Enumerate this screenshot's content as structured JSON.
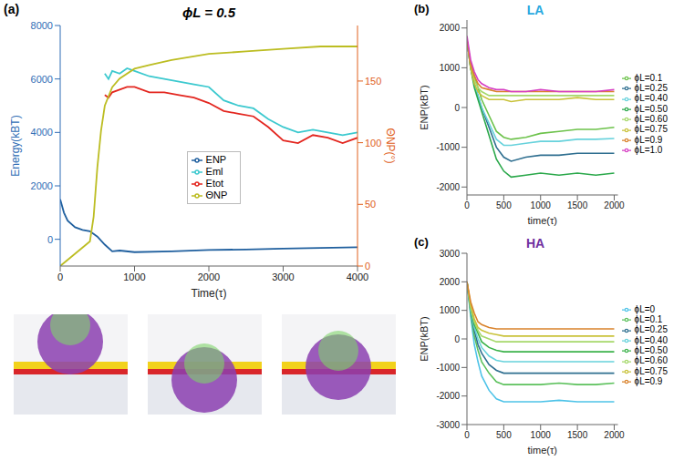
{
  "chart_data": [
    {
      "type": "line",
      "panel_label": "(a)",
      "title": "ϕL = 0.5",
      "x_label": "Time(τ)",
      "y_label": "Energy(kBT)",
      "y2_label": "ΘNP(°)",
      "xlim": [
        0,
        4000
      ],
      "xticks": [
        0,
        1000,
        2000,
        3000,
        4000
      ],
      "ylim": [
        -1000,
        8000
      ],
      "yticks": [
        0,
        2000,
        4000,
        6000,
        8000
      ],
      "y2lim": [
        0,
        195
      ],
      "y2ticks": [
        0,
        50,
        100,
        150
      ],
      "legend": "center",
      "series": [
        {
          "name": "Eml",
          "color": "#3cc9cf",
          "x": [
            600,
            650,
            700,
            800,
            900,
            1000,
            1200,
            1400,
            1600,
            1800,
            2000,
            2200,
            2400,
            2600,
            2800,
            3000,
            3200,
            3400,
            3600,
            3800,
            4000
          ],
          "values": [
            6200,
            6000,
            6300,
            6200,
            6400,
            6300,
            6100,
            6000,
            5900,
            5800,
            5700,
            5200,
            5000,
            4900,
            4500,
            4200,
            4000,
            4100,
            4000,
            3900,
            4000
          ]
        },
        {
          "name": "Etot",
          "color": "#e3261f",
          "x": [
            600,
            650,
            700,
            800,
            900,
            1000,
            1200,
            1400,
            1600,
            1800,
            2000,
            2200,
            2400,
            2600,
            2800,
            3000,
            3200,
            3400,
            3600,
            3800,
            4000
          ],
          "values": [
            5400,
            5300,
            5500,
            5600,
            5700,
            5700,
            5500,
            5500,
            5400,
            5300,
            5100,
            4800,
            4700,
            4600,
            4200,
            3700,
            3600,
            3900,
            3800,
            3600,
            3800
          ]
        },
        {
          "name": "ENP",
          "color": "#1f5f9e",
          "x": [
            0,
            50,
            100,
            200,
            300,
            400,
            500,
            600,
            700,
            800,
            1000,
            1500,
            2000,
            2500,
            3000,
            3500,
            4000
          ],
          "values": [
            1500,
            1000,
            700,
            450,
            350,
            300,
            100,
            -200,
            -450,
            -420,
            -480,
            -450,
            -400,
            -380,
            -350,
            -320,
            -300
          ]
        },
        {
          "name": "ΘNP",
          "color": "#bcbd22",
          "axis": "y2",
          "x": [
            0,
            100,
            200,
            300,
            400,
            450,
            500,
            550,
            600,
            700,
            800,
            1000,
            1200,
            1500,
            2000,
            2500,
            3000,
            3500,
            4000
          ],
          "values": [
            0,
            5,
            10,
            15,
            20,
            40,
            80,
            110,
            130,
            145,
            152,
            160,
            163,
            167,
            172,
            174,
            176,
            178,
            178
          ]
        }
      ]
    },
    {
      "type": "line",
      "panel_label": "(b)",
      "title": "LA",
      "x_label": "time(τ)",
      "y_label": "ENP(kBT)",
      "xlim": [
        0,
        2050
      ],
      "xticks": [
        0,
        500,
        1000,
        1500,
        2000
      ],
      "ylim": [
        -2200,
        2200
      ],
      "yticks": [
        -2000,
        -1000,
        0,
        1000,
        2000
      ],
      "legend": "right",
      "x": [
        0,
        50,
        100,
        150,
        200,
        300,
        400,
        500,
        600,
        800,
        1000,
        1250,
        1500,
        1750,
        2000
      ],
      "series": [
        {
          "name": "ϕL=0.1",
          "color": "#6cc24a",
          "values": [
            1700,
            1100,
            800,
            500,
            200,
            -200,
            -600,
            -750,
            -800,
            -750,
            -650,
            -600,
            -550,
            -550,
            -500
          ]
        },
        {
          "name": "ϕL=0.25",
          "color": "#2f6f90",
          "values": [
            1700,
            1000,
            600,
            300,
            0,
            -500,
            -1000,
            -1250,
            -1350,
            -1250,
            -1200,
            -1200,
            -1150,
            -1150,
            -1150
          ]
        },
        {
          "name": "ϕL=0.40",
          "color": "#67d2dc",
          "values": [
            1700,
            1000,
            600,
            300,
            0,
            -400,
            -800,
            -950,
            -950,
            -900,
            -850,
            -850,
            -800,
            -800,
            -780
          ]
        },
        {
          "name": "ϕL=0.50",
          "color": "#2aa84a",
          "values": [
            1700,
            1000,
            500,
            200,
            -100,
            -700,
            -1300,
            -1600,
            -1750,
            -1700,
            -1650,
            -1700,
            -1650,
            -1700,
            -1650
          ]
        },
        {
          "name": "ϕL=0.60",
          "color": "#a5d86a",
          "values": [
            1700,
            1100,
            700,
            500,
            400,
            300,
            300,
            300,
            300,
            300,
            300,
            300,
            300,
            300,
            300
          ]
        },
        {
          "name": "ϕL=0.75",
          "color": "#c9c23a",
          "values": [
            1700,
            1000,
            600,
            400,
            300,
            200,
            200,
            200,
            150,
            200,
            200,
            200,
            250,
            200,
            200
          ]
        },
        {
          "name": "ϕL=0.9",
          "color": "#d9822b",
          "values": [
            1700,
            1100,
            800,
            600,
            500,
            450,
            400,
            400,
            400,
            400,
            400,
            400,
            400,
            400,
            400
          ]
        },
        {
          "name": "ϕL=1.0",
          "color": "#d63fc4",
          "values": [
            1800,
            1200,
            900,
            700,
            600,
            500,
            450,
            450,
            400,
            400,
            450,
            400,
            400,
            400,
            450
          ]
        }
      ]
    },
    {
      "type": "line",
      "panel_label": "(c)",
      "title": "HA",
      "x_label": "time(τ)",
      "y_label": "ENP(kBT)",
      "xlim": [
        0,
        2050
      ],
      "xticks": [
        0,
        500,
        1000,
        1500,
        2000
      ],
      "ylim": [
        -3000,
        3000
      ],
      "yticks": [
        -3000,
        -2000,
        -1000,
        0,
        1000,
        2000,
        3000
      ],
      "legend": "right",
      "x": [
        0,
        50,
        100,
        150,
        200,
        300,
        400,
        500,
        600,
        800,
        1000,
        1250,
        1500,
        1750,
        2000
      ],
      "series": [
        {
          "name": "ϕL=0",
          "color": "#4fc3e8",
          "values": [
            2000,
            800,
            -200,
            -800,
            -1300,
            -1800,
            -2100,
            -2200,
            -2200,
            -2200,
            -2200,
            -2150,
            -2200,
            -2200,
            -2200
          ]
        },
        {
          "name": "ϕL=0.1",
          "color": "#5cc15c",
          "values": [
            2000,
            900,
            100,
            -400,
            -800,
            -1200,
            -1500,
            -1600,
            -1600,
            -1600,
            -1600,
            -1550,
            -1600,
            -1600,
            -1550
          ]
        },
        {
          "name": "ϕL=0.25",
          "color": "#2f6f90",
          "values": [
            2000,
            1000,
            300,
            -200,
            -500,
            -900,
            -1100,
            -1200,
            -1200,
            -1200,
            -1200,
            -1200,
            -1200,
            -1200,
            -1200
          ]
        },
        {
          "name": "ϕL=0.40",
          "color": "#67d2dc",
          "values": [
            2000,
            1000,
            400,
            0,
            -300,
            -600,
            -750,
            -800,
            -800,
            -800,
            -800,
            -800,
            -800,
            -800,
            -800
          ]
        },
        {
          "name": "ϕL=0.50",
          "color": "#3bb24a",
          "values": [
            2000,
            1100,
            500,
            200,
            -100,
            -300,
            -400,
            -450,
            -450,
            -450,
            -450,
            -450,
            -450,
            -450,
            -450
          ]
        },
        {
          "name": "ϕL=0.60",
          "color": "#a5d86a",
          "values": [
            2000,
            1100,
            600,
            300,
            100,
            0,
            -100,
            -100,
            -100,
            -100,
            -100,
            -100,
            -100,
            -100,
            -100
          ]
        },
        {
          "name": "ϕL=0.75",
          "color": "#c9c23a",
          "values": [
            2000,
            1200,
            700,
            400,
            300,
            200,
            150,
            100,
            100,
            100,
            100,
            100,
            100,
            100,
            100
          ]
        },
        {
          "name": "ϕL=0.9",
          "color": "#d9822b",
          "values": [
            2000,
            1300,
            900,
            600,
            500,
            400,
            350,
            350,
            350,
            350,
            350,
            350,
            350,
            350,
            350
          ]
        }
      ]
    }
  ]
}
